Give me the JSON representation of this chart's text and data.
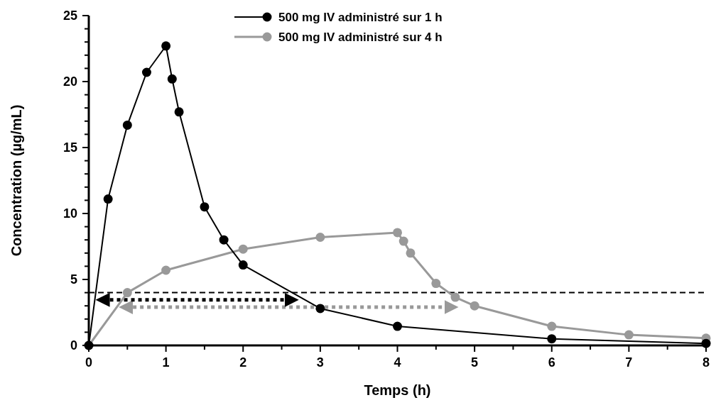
{
  "chart_data": {
    "type": "line",
    "xlabel": "Temps (h)",
    "ylabel": "Concentration (µg/mL)",
    "xlim": [
      0,
      8
    ],
    "ylim": [
      0,
      25
    ],
    "xticks": [
      0,
      {
        "value": 0.5,
        "label": null
      },
      1,
      {
        "value": 1.5,
        "label": null
      },
      2,
      {
        "value": 2.5,
        "label": null
      },
      3,
      {
        "value": 3.5,
        "label": null
      },
      4,
      {
        "value": 4.5,
        "label": null
      },
      5,
      {
        "value": 5.5,
        "label": null
      },
      6,
      {
        "value": 6.5,
        "label": null
      },
      7,
      {
        "value": 7.5,
        "label": null
      },
      8
    ],
    "yticks": [
      0,
      {
        "value": 1,
        "label": null
      },
      {
        "value": 2,
        "label": null
      },
      {
        "value": 3,
        "label": null
      },
      {
        "value": 4,
        "label": null
      },
      5,
      {
        "value": 6,
        "label": null
      },
      {
        "value": 7,
        "label": null
      },
      {
        "value": 8,
        "label": null
      },
      {
        "value": 9,
        "label": null
      },
      10,
      {
        "value": 11,
        "label": null
      },
      {
        "value": 12,
        "label": null
      },
      {
        "value": 13,
        "label": null
      },
      {
        "value": 14,
        "label": null
      },
      15,
      {
        "value": 16,
        "label": null
      },
      {
        "value": 17,
        "label": null
      },
      {
        "value": 18,
        "label": null
      },
      {
        "value": 19,
        "label": null
      },
      20,
      {
        "value": 21,
        "label": null
      },
      {
        "value": 22,
        "label": null
      },
      {
        "value": 23,
        "label": null
      },
      {
        "value": 24,
        "label": null
      },
      25
    ],
    "grid": false,
    "legend": "top",
    "marker": "circle",
    "ref_lines": [
      {
        "axis": "y",
        "value": 4,
        "color": "#000000",
        "line_style": "dashed"
      }
    ],
    "series": [
      {
        "name": "500 mg IV administré sur 1 h",
        "color": "#000000",
        "x": [
          0,
          0.25,
          0.5,
          0.75,
          1,
          1.08,
          1.17,
          1.5,
          1.75,
          2,
          3,
          4,
          6,
          8
        ],
        "values": [
          0,
          11.1,
          16.7,
          20.7,
          22.7,
          20.2,
          17.7,
          10.5,
          8.0,
          6.1,
          2.8,
          1.45,
          0.5,
          0.15
        ]
      },
      {
        "name": "500 mg IV administré sur 4 h",
        "color": "#999999",
        "x": [
          0,
          0.5,
          1,
          2,
          3,
          4,
          4.08,
          4.17,
          4.5,
          4.75,
          5,
          6,
          7,
          8
        ],
        "values": [
          0,
          4.0,
          5.7,
          7.3,
          8.2,
          8.55,
          7.9,
          7.0,
          4.7,
          3.65,
          3.0,
          1.45,
          0.8,
          0.55
        ]
      },
      {
        "color": "#000000",
        "x": [
          0.18,
          2.63
        ],
        "values": [
          3.45,
          3.45
        ],
        "marker": "none",
        "line_style": "dotted"
      },
      {
        "color": "#999999",
        "x": [
          0.48,
          4.7
        ],
        "values": [
          2.9,
          2.9
        ],
        "marker": "none",
        "line_style": "dotted"
      }
    ]
  }
}
